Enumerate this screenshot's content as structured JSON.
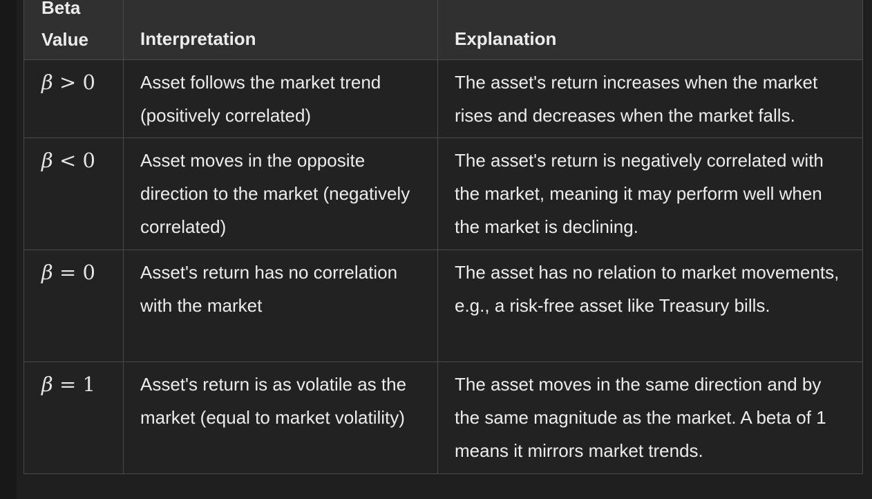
{
  "table": {
    "headers": {
      "beta_line1": "Beta",
      "beta_line2": "Value",
      "interpretation": "Interpretation",
      "explanation": "Explanation"
    },
    "rows": [
      {
        "symbol": "β",
        "relation": "> 0",
        "interpretation": "Asset follows the market trend (positively correlated)",
        "explanation": "The asset's return increases when the market rises and decreases when the market falls."
      },
      {
        "symbol": "β",
        "relation": "< 0",
        "interpretation": "Asset moves in the opposite direction to the market (negatively correlated)",
        "explanation": "The asset's return is negatively correlated with the market, meaning it may perform well when the market is declining."
      },
      {
        "symbol": "β",
        "relation": "= 0",
        "interpretation": "Asset's return has no correlation with the market",
        "explanation": "The asset has no relation to market movements, e.g., a risk-free asset like Treasury bills."
      },
      {
        "symbol": "β",
        "relation": "= 1",
        "interpretation": "Asset's return is as volatile as the market (equal to market volatility)",
        "explanation": "The asset moves in the same direction and by the same magnitude as the market. A beta of 1 means it mirrors market trends."
      }
    ]
  }
}
